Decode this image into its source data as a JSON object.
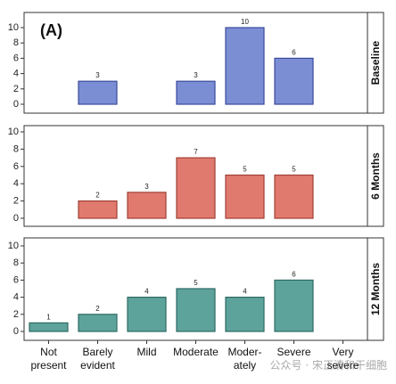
{
  "chart_data": {
    "type": "bar",
    "title": "(A)",
    "categories": [
      [
        "Not",
        "present"
      ],
      [
        "Barely",
        "evident"
      ],
      [
        "Mild"
      ],
      [
        "Moderate"
      ],
      [
        "Moder-",
        "ately"
      ],
      [
        "Severe"
      ],
      [
        "Very",
        "severe"
      ]
    ],
    "ylim": [
      0,
      10
    ],
    "yticks": [
      0,
      2,
      4,
      6,
      8,
      10
    ],
    "panels": [
      {
        "label": "Baseline",
        "color": "#7b8ed4",
        "edge": "#3b4a9c",
        "values": [
          null,
          3,
          null,
          3,
          10,
          6,
          null
        ]
      },
      {
        "label": "6 Months",
        "color": "#e17a6e",
        "edge": "#a13f35",
        "values": [
          null,
          2,
          3,
          7,
          5,
          5,
          null
        ]
      },
      {
        "label": "12 Months",
        "color": "#5ea39b",
        "edge": "#2d6b64",
        "values": [
          1,
          2,
          4,
          5,
          4,
          6,
          null
        ]
      }
    ]
  },
  "watermark": "公众号 · 宋正清和干细胞"
}
